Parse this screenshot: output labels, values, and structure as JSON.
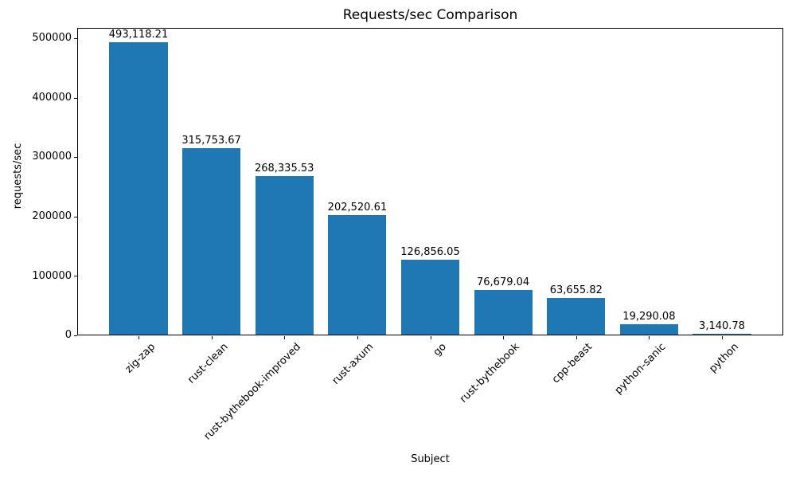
{
  "chart_data": {
    "type": "bar",
    "title": "Requests/sec Comparison",
    "xlabel": "Subject",
    "ylabel": "requests/sec",
    "categories": [
      "zig-zap",
      "rust-clean",
      "rust-bythebook-improved",
      "rust-axum",
      "go",
      "rust-bythebook",
      "cpp-beast",
      "python-sanic",
      "python"
    ],
    "values": [
      493118.21,
      315753.67,
      268335.53,
      202520.61,
      126856.05,
      76679.04,
      63655.82,
      19290.08,
      3140.78
    ],
    "value_labels": [
      "493,118.21",
      "315,753.67",
      "268,335.53",
      "202,520.61",
      "126,856.05",
      "76,679.04",
      "63,655.82",
      "19,290.08",
      "3,140.78"
    ],
    "yticks": [
      0,
      100000,
      200000,
      300000,
      400000,
      500000
    ],
    "ytick_labels": [
      "0",
      "100000",
      "200000",
      "300000",
      "400000",
      "500000"
    ],
    "ylim": [
      0,
      517774
    ],
    "bar_color": "#1f77b4",
    "grid": false,
    "legend_position": "none"
  }
}
